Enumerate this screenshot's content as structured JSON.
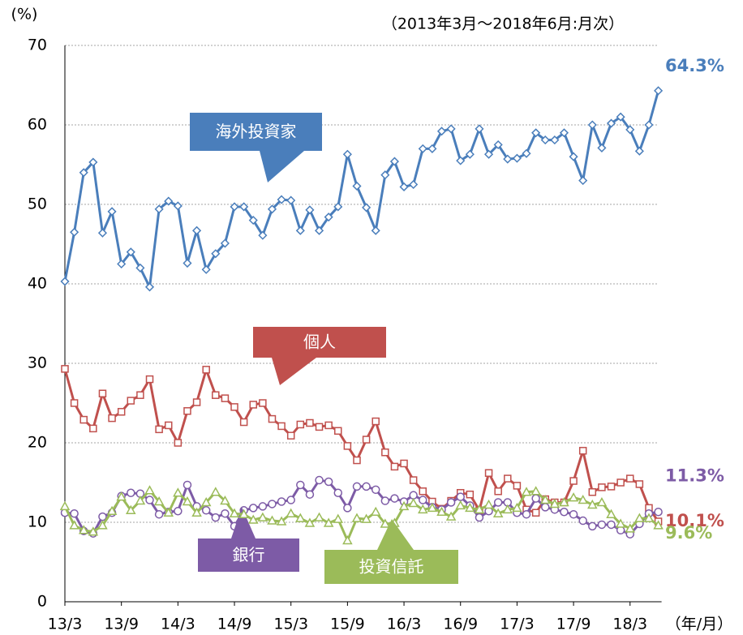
{
  "chart_data": {
    "type": "line",
    "subtitle": "（2013年3月～2018年6月:月次）",
    "y_label": "(%)",
    "x_label": "（年/月）",
    "categories": [
      "13/3",
      null,
      null,
      null,
      null,
      null,
      "13/9",
      null,
      null,
      null,
      null,
      null,
      "14/3",
      null,
      null,
      null,
      null,
      null,
      "14/9",
      null,
      null,
      null,
      null,
      null,
      "15/3",
      null,
      null,
      null,
      null,
      null,
      "15/9",
      null,
      null,
      null,
      null,
      null,
      "16/3",
      null,
      null,
      null,
      null,
      null,
      "16/9",
      null,
      null,
      null,
      null,
      null,
      "17/3",
      null,
      null,
      null,
      null,
      null,
      "17/9",
      null,
      null,
      null,
      null,
      null,
      "18/3",
      null,
      null,
      null
    ],
    "ylim": [
      0,
      70
    ],
    "yticks": [
      0,
      10,
      20,
      30,
      40,
      50,
      60,
      70
    ],
    "grid": true,
    "series": [
      {
        "name": "海外投資家",
        "color": "#4a7ebb",
        "marker": "diamond",
        "values": [
          40.3,
          46.5,
          54,
          55.3,
          46.4,
          49.1,
          42.5,
          44,
          42,
          39.6,
          49.4,
          50.4,
          49.8,
          42.6,
          46.7,
          41.8,
          43.8,
          45.1,
          49.7,
          49.7,
          48,
          46.1,
          49.4,
          50.6,
          50.5,
          46.7,
          49.3,
          46.7,
          48.4,
          49.7,
          56.3,
          52.3,
          49.6,
          46.7,
          53.7,
          55.4,
          52.2,
          52.5,
          57,
          57,
          59.2,
          59.5,
          55.5,
          56.3,
          59.5,
          56.3,
          57.5,
          55.7,
          55.8,
          56.4,
          59,
          58.1,
          58.1,
          59,
          56,
          53,
          60,
          57.1,
          60.2,
          61,
          59.4,
          56.7,
          60,
          64.3
        ],
        "value_labels": [
          null,
          null,
          null,
          null,
          null,
          null,
          null,
          null,
          null,
          null,
          null,
          null,
          null,
          null,
          null,
          null,
          null,
          null,
          null,
          null,
          null,
          null,
          null,
          null,
          null,
          null,
          null,
          null,
          null,
          null,
          null,
          null,
          null,
          null,
          null,
          null,
          null,
          null,
          null,
          null,
          null,
          null,
          null,
          null,
          null,
          null,
          null,
          null,
          null,
          null,
          null,
          null,
          null,
          null,
          null,
          null,
          null,
          null,
          null,
          null,
          null,
          null,
          null,
          "64.3%"
        ]
      },
      {
        "name": "個人",
        "color": "#c0504d",
        "marker": "square",
        "values": [
          29.3,
          25,
          22.9,
          21.8,
          26.2,
          23.1,
          23.9,
          25.3,
          26,
          28,
          21.7,
          22.2,
          20,
          24,
          25.1,
          29.2,
          26,
          25.6,
          24.5,
          22.6,
          24.8,
          25,
          23,
          22.1,
          20.9,
          22.3,
          22.5,
          22,
          22.2,
          21.5,
          19.6,
          17.8,
          20.4,
          22.7,
          18.8,
          17,
          17.4,
          15.3,
          13.9,
          12.6,
          11.7,
          12.7,
          13.7,
          13.5,
          11.5,
          16.2,
          13.9,
          15.5,
          14.6,
          11.6,
          11.2,
          12.9,
          12.5,
          12.5,
          15.2,
          19,
          13.8,
          14.4,
          14.5,
          15,
          15.5,
          14.8,
          11.8,
          10.1
        ],
        "value_labels": [
          null,
          null,
          null,
          null,
          null,
          null,
          null,
          null,
          null,
          null,
          null,
          null,
          null,
          null,
          null,
          null,
          null,
          null,
          null,
          null,
          null,
          null,
          null,
          null,
          null,
          null,
          null,
          null,
          null,
          null,
          null,
          null,
          null,
          null,
          null,
          null,
          null,
          null,
          null,
          null,
          null,
          null,
          null,
          null,
          null,
          null,
          null,
          null,
          null,
          null,
          null,
          null,
          null,
          null,
          null,
          null,
          null,
          null,
          null,
          null,
          null,
          null,
          null,
          "10.1%"
        ]
      },
      {
        "name": "銀行",
        "color": "#7d5ba6",
        "marker": "circle",
        "values": [
          11.2,
          11.1,
          8.9,
          8.6,
          10.7,
          11.2,
          13.3,
          13.7,
          13.6,
          12.8,
          11,
          11.3,
          11.4,
          14.7,
          12,
          11.5,
          10.6,
          11.1,
          9.5,
          11.5,
          11.8,
          12,
          12.3,
          12.6,
          12.8,
          14.7,
          13.5,
          15.3,
          15.1,
          13.7,
          11.8,
          14.5,
          14.5,
          14.1,
          12.7,
          13,
          12.6,
          13.4,
          12.8,
          11.9,
          11.6,
          12.5,
          13.2,
          12.1,
          10.6,
          11.4,
          12.5,
          12.5,
          11.2,
          11,
          13,
          11.9,
          11.6,
          11.3,
          11,
          10.2,
          9.5,
          9.7,
          9.7,
          9,
          8.5,
          9.8,
          11.1,
          11.3
        ],
        "value_labels": [
          null,
          null,
          null,
          null,
          null,
          null,
          null,
          null,
          null,
          null,
          null,
          null,
          null,
          null,
          null,
          null,
          null,
          null,
          null,
          null,
          null,
          null,
          null,
          null,
          null,
          null,
          null,
          null,
          null,
          null,
          null,
          null,
          null,
          null,
          null,
          null,
          null,
          null,
          null,
          null,
          null,
          null,
          null,
          null,
          null,
          null,
          null,
          null,
          null,
          null,
          null,
          null,
          null,
          null,
          null,
          null,
          null,
          null,
          null,
          null,
          null,
          null,
          null,
          "11.3%"
        ]
      },
      {
        "name": "投資信託",
        "color": "#9bbb59",
        "marker": "triangle",
        "values": [
          12,
          9.6,
          9,
          8.8,
          9.6,
          11.4,
          13.2,
          11.5,
          12.7,
          14,
          12.6,
          11.2,
          13.7,
          12.6,
          11.2,
          12.5,
          13.8,
          12.7,
          11.1,
          11,
          10.3,
          10.6,
          10.2,
          10.1,
          11.1,
          10.5,
          9.9,
          10.6,
          9.9,
          10.4,
          7.7,
          10.5,
          10.4,
          11.3,
          9.8,
          9.9,
          12,
          12.4,
          11.6,
          11.8,
          11.3,
          10.7,
          12.1,
          11.8,
          11.6,
          12.2,
          11.1,
          11.6,
          11.8,
          13.8,
          13.9,
          12.8,
          12.3,
          12.5,
          13.1,
          12.8,
          12.2,
          12.5,
          11,
          9.8,
          9.2,
          10.5,
          10.5,
          9.6
        ],
        "value_labels": [
          null,
          null,
          null,
          null,
          null,
          null,
          null,
          null,
          null,
          null,
          null,
          null,
          null,
          null,
          null,
          null,
          null,
          null,
          null,
          null,
          null,
          null,
          null,
          null,
          null,
          null,
          null,
          null,
          null,
          null,
          null,
          null,
          null,
          null,
          null,
          null,
          null,
          null,
          null,
          null,
          null,
          null,
          null,
          null,
          null,
          null,
          null,
          null,
          null,
          null,
          null,
          null,
          null,
          null,
          null,
          null,
          null,
          null,
          null,
          null,
          null,
          null,
          null,
          "9.6%"
        ]
      }
    ]
  }
}
